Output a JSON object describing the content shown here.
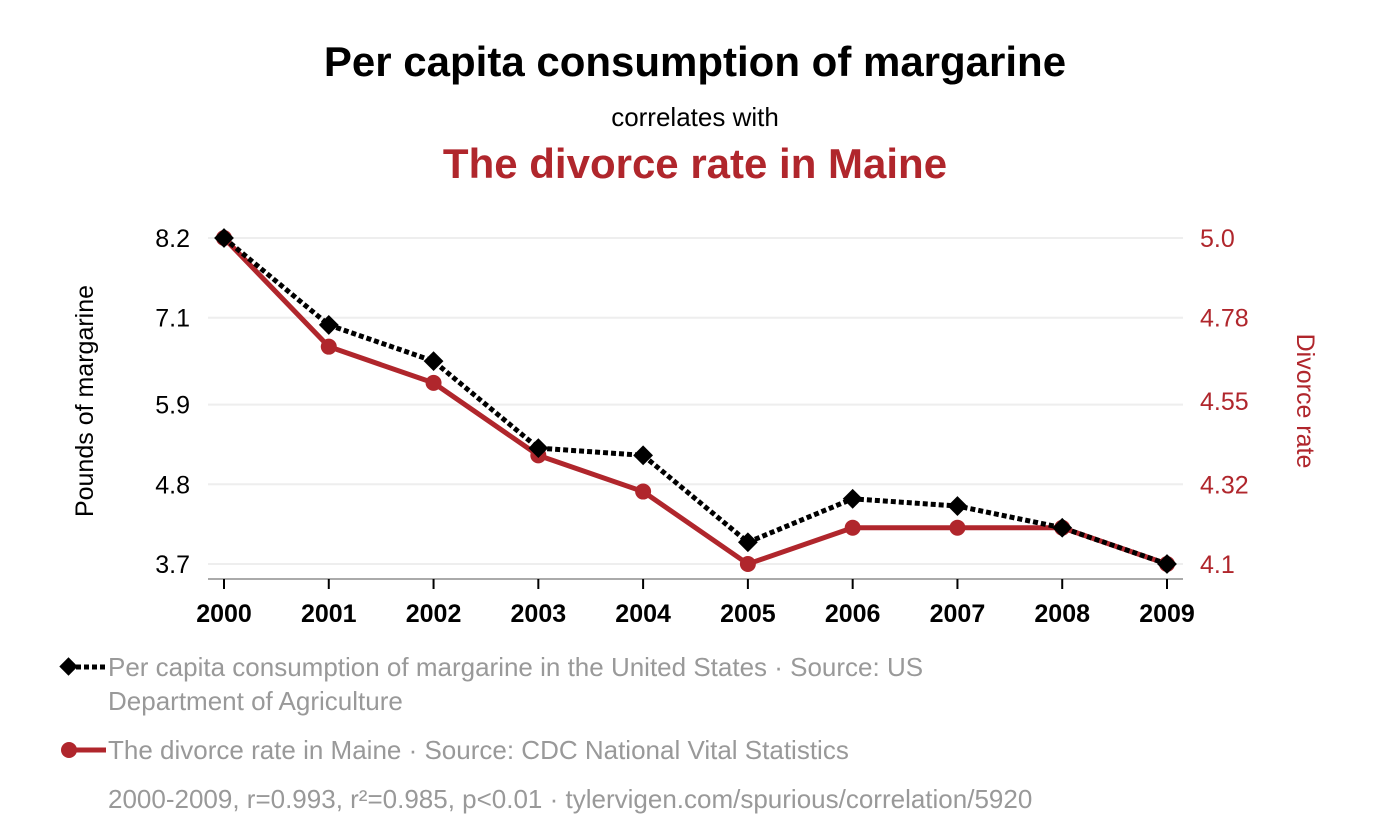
{
  "header": {
    "title": "Per capita consumption of margarine",
    "subtitle": "correlates with",
    "title2": "The divorce rate in Maine"
  },
  "legend": {
    "series1_line1": "Per capita consumption of margarine in the United States · Source: US",
    "series1_line2": "Department of Agriculture",
    "series2": "The divorce rate in Maine · Source: CDC National Vital Statistics"
  },
  "footer": "2000-2009, r=0.993, r²=0.985, p<0.01 · tylervigen.com/spurious/correlation/5920",
  "colors": {
    "series1": "#000000",
    "series2": "#b0262c",
    "grid": "#eeeeee",
    "muted_text": "#999999"
  },
  "chart_data": {
    "type": "line",
    "title": "Per capita consumption of margarine correlates with The divorce rate in Maine",
    "x": [
      "2000",
      "2001",
      "2002",
      "2003",
      "2004",
      "2005",
      "2006",
      "2007",
      "2008",
      "2009"
    ],
    "xlabel": "",
    "ylabel_left": "Pounds of margarine",
    "ylabel_right": "Divorce rate",
    "ylim_left": [
      3.7,
      8.2
    ],
    "ylim_right": [
      4.1,
      5.0
    ],
    "yticks_left": [
      "8.2",
      "7.1",
      "5.9",
      "4.8",
      "3.7"
    ],
    "yticks_right": [
      "5.0",
      "4.78",
      "4.55",
      "4.32",
      "4.1"
    ],
    "grid": true,
    "legend_position": "bottom-left",
    "series": [
      {
        "name": "Per capita consumption of margarine in the United States",
        "axis": "left",
        "style": "dotted",
        "marker": "diamond",
        "values": [
          8.2,
          7.0,
          6.5,
          5.3,
          5.2,
          4.0,
          4.6,
          4.5,
          4.2,
          3.7
        ]
      },
      {
        "name": "The divorce rate in Maine",
        "axis": "right",
        "style": "solid",
        "marker": "circle",
        "values": [
          5.0,
          4.7,
          4.6,
          4.4,
          4.3,
          4.1,
          4.2,
          4.2,
          4.2,
          4.1
        ]
      }
    ]
  }
}
